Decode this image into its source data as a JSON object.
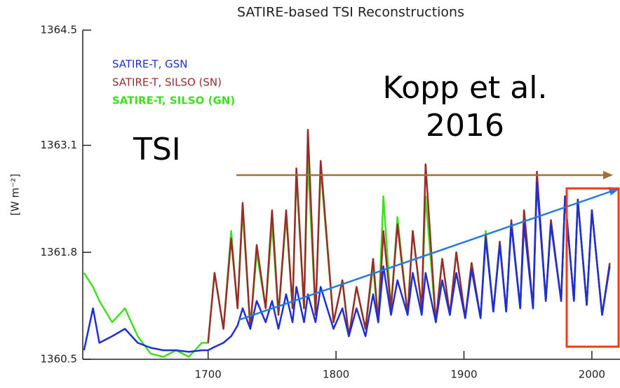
{
  "chart_data": {
    "type": "line",
    "title": "SATIRE-based TSI Reconstructions",
    "y_label": "[W m⁻²]",
    "annotations": [
      "TSI",
      "Kopp et al.",
      "2016"
    ],
    "xlim": [
      1602,
      2022
    ],
    "xticks": [
      1700,
      1800,
      1900,
      2000
    ],
    "ylim": [
      1360.5,
      1364.5
    ],
    "yticks": [
      1364.5,
      1363.1,
      1361.8,
      1360.5
    ],
    "x": [
      1603,
      1610,
      1615,
      1625,
      1635,
      1645,
      1655,
      1665,
      1675,
      1685,
      1695,
      1700,
      1705,
      1712,
      1718,
      1723,
      1727,
      1733,
      1738,
      1745,
      1750,
      1755,
      1761,
      1766,
      1769,
      1775,
      1778,
      1784,
      1788,
      1798,
      1805,
      1810,
      1816,
      1823,
      1829,
      1833,
      1837,
      1843,
      1848,
      1856,
      1860,
      1867,
      1870,
      1878,
      1883,
      1889,
      1894,
      1901,
      1906,
      1913,
      1917,
      1923,
      1928,
      1933,
      1937,
      1944,
      1947,
      1954,
      1957,
      1964,
      1968,
      1976,
      1979,
      1986,
      1989,
      1996,
      2000,
      2008,
      2014
    ],
    "series": [
      {
        "name": "SATIRE-T, SILSO (GN)",
        "color": "#3ee01e",
        "values": [
          1361.55,
          1361.38,
          1361.21,
          1360.95,
          1361.12,
          1360.78,
          1360.57,
          1360.53,
          1360.61,
          1360.53,
          1360.7,
          1360.7,
          1361.55,
          1360.87,
          1362.06,
          1361.12,
          1362.31,
          1360.87,
          1361.8,
          1361.12,
          1362.14,
          1361.04,
          1362.23,
          1361.12,
          1362.74,
          1361.12,
          1362.91,
          1361.04,
          1362.82,
          1360.95,
          1361.46,
          1360.78,
          1361.38,
          1360.87,
          1361.63,
          1360.95,
          1362.48,
          1361.12,
          1362.23,
          1361.04,
          1362.06,
          1361.12,
          1362.48,
          1360.95,
          1361.72,
          1361.04,
          1361.8,
          1361.0,
          1361.67,
          1361.0,
          1362.06,
          1361.08,
          1361.93,
          1361.08,
          1362.14,
          1361.12,
          1362.31,
          1361.12,
          1362.65,
          1361.21,
          1362.19,
          1361.21,
          1362.48,
          1361.21,
          1362.44,
          1361.16,
          1362.31,
          1361.04,
          1361.67
        ]
      },
      {
        "name": "SATIRE-T, SILSO (SN)",
        "color": "#9b2b2b",
        "values": [
          null,
          null,
          null,
          null,
          null,
          null,
          null,
          null,
          null,
          null,
          null,
          1360.7,
          1361.55,
          1360.87,
          1361.97,
          1361.12,
          1362.4,
          1360.87,
          1361.89,
          1361.12,
          1362.31,
          1361.04,
          1362.31,
          1361.12,
          1362.82,
          1361.12,
          1363.29,
          1361.04,
          1362.91,
          1360.95,
          1361.46,
          1360.78,
          1361.38,
          1360.87,
          1361.72,
          1360.95,
          1362.06,
          1361.12,
          1362.14,
          1361.04,
          1362.06,
          1361.12,
          1362.87,
          1360.95,
          1361.72,
          1361.04,
          1361.8,
          1361.0,
          1361.67,
          1361.0,
          1362.01,
          1361.08,
          1361.93,
          1361.08,
          1362.19,
          1361.12,
          1362.31,
          1361.12,
          1362.78,
          1361.21,
          1362.19,
          1361.21,
          1362.48,
          1361.21,
          1362.44,
          1361.16,
          1362.31,
          1361.04,
          1361.67
        ]
      },
      {
        "name": "SATIRE-T, GSN",
        "color": "#1e2fd6",
        "values": [
          1360.61,
          1361.12,
          1360.7,
          1360.78,
          1360.87,
          1360.7,
          1360.64,
          1360.61,
          1360.61,
          1360.59,
          1360.61,
          1360.61,
          1360.65,
          1360.7,
          1360.78,
          1360.91,
          1361.12,
          1360.87,
          1361.21,
          1360.95,
          1361.21,
          1360.87,
          1361.29,
          1360.95,
          1361.38,
          1360.95,
          1361.29,
          1360.95,
          1361.38,
          1360.87,
          1361.12,
          1360.78,
          1361.12,
          1360.78,
          1361.29,
          1360.95,
          1361.63,
          1361.04,
          1361.46,
          1361.04,
          1361.55,
          1361.04,
          1361.55,
          1360.95,
          1361.46,
          1361.04,
          1361.55,
          1361.0,
          1361.59,
          1361.0,
          1361.97,
          1361.08,
          1361.89,
          1361.08,
          1362.14,
          1361.12,
          1362.14,
          1361.12,
          1362.65,
          1361.21,
          1362.14,
          1361.21,
          1362.48,
          1361.21,
          1362.44,
          1361.16,
          1362.31,
          1361.04,
          1361.63
        ]
      }
    ]
  }
}
